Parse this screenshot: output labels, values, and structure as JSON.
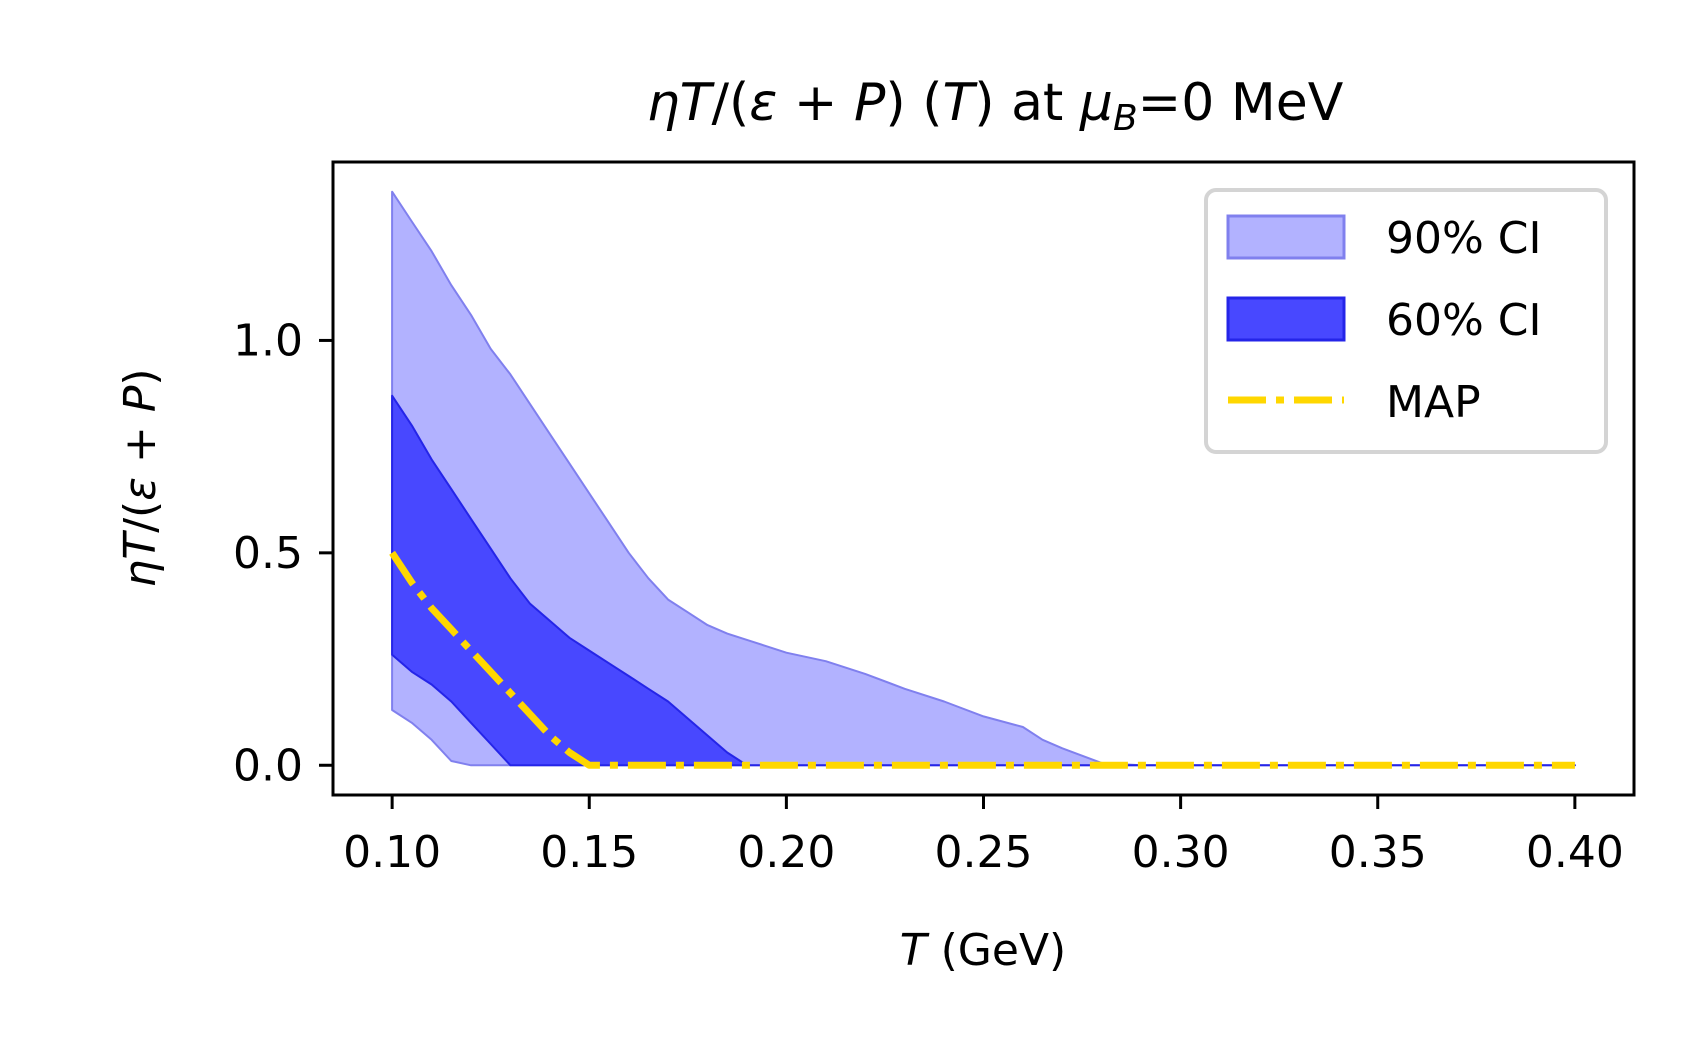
{
  "chart_data": {
    "type": "area",
    "title": "ηT/(ε + P) (T) at μB=0 MeV",
    "title_parts": {
      "eta_t": "ηT",
      "slash_open": "/(",
      "eps": "ε",
      "plus": " + ",
      "p": "P",
      "close": ") (",
      "t": "T",
      "at": ") at ",
      "mu": "μ",
      "mu_sub": "B",
      "rest": "=0 MeV"
    },
    "xlabel": "T (GeV)",
    "xlabel_parts": {
      "var": "T",
      "unit": " (GeV)"
    },
    "ylabel": "ηT/(ε + P)",
    "ylabel_parts": {
      "eta_t": "ηT",
      "slash_open": "/(",
      "eps": "ε",
      "plus": " + ",
      "p": "P",
      "close": ")"
    },
    "xlim": [
      0.085,
      0.415
    ],
    "ylim": [
      -0.07,
      1.42
    ],
    "xticks": [
      0.1,
      0.15,
      0.2,
      0.25,
      0.3,
      0.35,
      0.4
    ],
    "xtick_labels": [
      "0.10",
      "0.15",
      "0.20",
      "0.25",
      "0.30",
      "0.35",
      "0.40"
    ],
    "yticks": [
      0.0,
      0.5,
      1.0
    ],
    "ytick_labels": [
      "0.0",
      "0.5",
      "1.0"
    ],
    "grid": false,
    "legend_position": "top-right",
    "series": [
      {
        "name": "90% CI",
        "kind": "band",
        "color": "#b2b2ff",
        "edge_color": "#8080ee",
        "x": [
          0.1,
          0.105,
          0.11,
          0.115,
          0.12,
          0.125,
          0.13,
          0.135,
          0.14,
          0.145,
          0.15,
          0.155,
          0.16,
          0.165,
          0.17,
          0.175,
          0.18,
          0.185,
          0.19,
          0.195,
          0.2,
          0.21,
          0.22,
          0.23,
          0.24,
          0.25,
          0.26,
          0.265,
          0.27,
          0.28,
          0.29,
          0.3,
          0.35,
          0.4
        ],
        "upper": [
          1.35,
          1.28,
          1.21,
          1.13,
          1.06,
          0.98,
          0.92,
          0.85,
          0.78,
          0.71,
          0.64,
          0.57,
          0.5,
          0.44,
          0.39,
          0.36,
          0.33,
          0.31,
          0.295,
          0.28,
          0.265,
          0.245,
          0.215,
          0.18,
          0.15,
          0.115,
          0.09,
          0.06,
          0.04,
          0.005,
          0.0,
          0.0,
          0.0,
          0.0
        ],
        "lower": [
          0.13,
          0.1,
          0.06,
          0.01,
          0.0,
          0.0,
          0.0,
          0.0,
          0.0,
          0.0,
          0.0,
          0.0,
          0.0,
          0.0,
          0.0,
          0.0,
          0.0,
          0.0,
          0.0,
          0.0,
          0.0,
          0.0,
          0.0,
          0.0,
          0.0,
          0.0,
          0.0,
          0.0,
          0.0,
          0.0,
          0.0,
          0.0,
          0.0,
          0.0
        ]
      },
      {
        "name": "60% CI",
        "kind": "band",
        "color": "#4848ff",
        "edge_color": "#2525e8",
        "x": [
          0.1,
          0.105,
          0.11,
          0.115,
          0.12,
          0.125,
          0.13,
          0.135,
          0.14,
          0.145,
          0.15,
          0.155,
          0.16,
          0.165,
          0.17,
          0.175,
          0.18,
          0.185,
          0.19,
          0.2,
          0.25,
          0.3,
          0.35,
          0.4
        ],
        "upper": [
          0.87,
          0.8,
          0.72,
          0.65,
          0.58,
          0.51,
          0.44,
          0.38,
          0.34,
          0.3,
          0.27,
          0.24,
          0.21,
          0.18,
          0.15,
          0.11,
          0.07,
          0.03,
          0.0,
          0.0,
          0.0,
          0.0,
          0.0,
          0.0
        ],
        "lower": [
          0.26,
          0.22,
          0.19,
          0.15,
          0.1,
          0.05,
          0.0,
          0.0,
          0.0,
          0.0,
          0.0,
          0.0,
          0.0,
          0.0,
          0.0,
          0.0,
          0.0,
          0.0,
          0.0,
          0.0,
          0.0,
          0.0,
          0.0,
          0.0
        ]
      },
      {
        "name": "MAP",
        "kind": "line",
        "color": "#ffd700",
        "linestyle": "dashdot",
        "x": [
          0.1,
          0.105,
          0.11,
          0.115,
          0.12,
          0.125,
          0.13,
          0.135,
          0.14,
          0.145,
          0.15,
          0.155,
          0.2,
          0.25,
          0.3,
          0.35,
          0.4
        ],
        "y": [
          0.5,
          0.43,
          0.37,
          0.32,
          0.27,
          0.22,
          0.17,
          0.12,
          0.07,
          0.03,
          0.0,
          0.0,
          0.0,
          0.0,
          0.0,
          0.0,
          0.0
        ]
      }
    ]
  }
}
